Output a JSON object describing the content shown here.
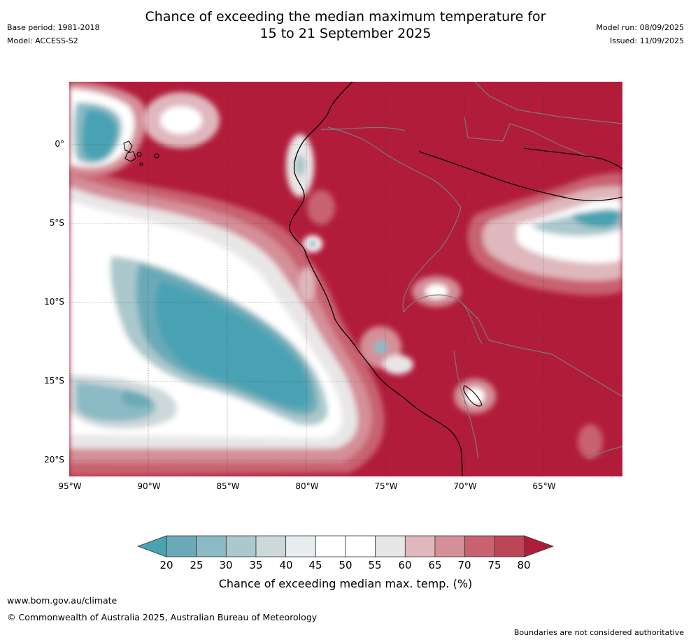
{
  "title_line1": "Chance of exceeding the median maximum temperature for",
  "title_line2": "15 to 21 September 2025",
  "base_period": "Base period: 1981-2018",
  "model": "Model: ACCESS-S2",
  "model_run": "Model run: 08/09/2025",
  "issued": "Issued: 11/09/2025",
  "lat_labels": [
    "0°",
    "5°S",
    "10°S",
    "15°S",
    "20°S"
  ],
  "lon_labels": [
    "95°W",
    "90°W",
    "85°W",
    "80°W",
    "75°W",
    "70°W",
    "65°W"
  ],
  "colorbar": {
    "ticks": [
      "20",
      "25",
      "30",
      "35",
      "40",
      "45",
      "50",
      "55",
      "60",
      "65",
      "70",
      "75",
      "80"
    ],
    "colors": [
      "#4aa2b3",
      "#6aaab8",
      "#8bbac4",
      "#abc8cc",
      "#cdd8da",
      "#e8eef0",
      "#ffffff",
      "#ffffff",
      "#e9e6e7",
      "#dfb7bd",
      "#d48f98",
      "#c86270",
      "#bd4656",
      "#b11c3a"
    ],
    "label": "Chance of exceeding median max. temp. (%)"
  },
  "footer_url": "www.bom.gov.au/climate",
  "copyright": "© Commonwealth of Australia 2025, Australian Bureau of Meteorology",
  "disclaimer": "Boundaries are not considered authoritative"
}
